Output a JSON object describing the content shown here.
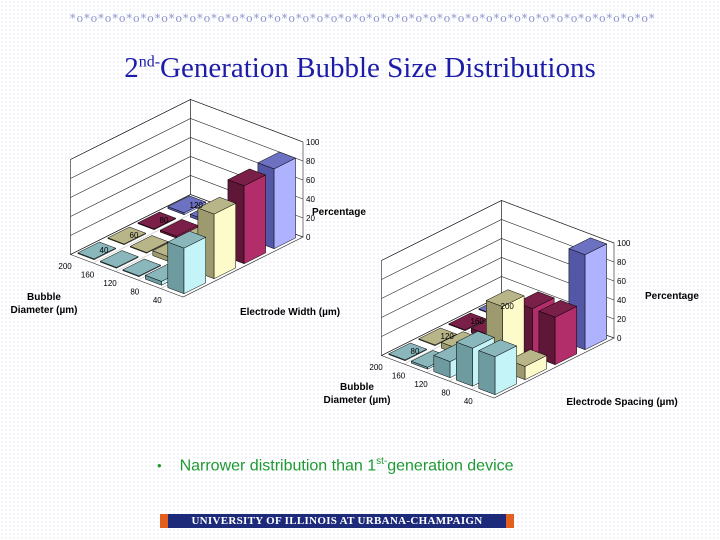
{
  "slide": {
    "ornament": "*o*o*o*o*o*o*o*o*o*o*o*o*o*o*o*o*o*o*o*o*o*o*o*o*o*o*o*o*o*o*o*o*o*o*o*o*o*o*o*o*o*o*o*o",
    "title_prefix": "2",
    "title_sup": "nd-",
    "title_rest": "Generation Bubble Size Distributions",
    "bullet_dot": "•",
    "bullet_text_a": "Narrower distribution than 1",
    "bullet_sup": "st-",
    "bullet_text_b": "generation device",
    "footer": "UNIVERSITY OF ILLINOIS AT URBANA-CHAMPAIGN",
    "colors": {
      "title": "#1c1ca8",
      "bullet": "#1e9a32",
      "footer_bg": "#1d2a7a",
      "footer_cap": "#e35f1e"
    }
  },
  "chart_data": [
    {
      "type": "bar3d",
      "title": "",
      "zlabel": "Percentage",
      "xlabel_lines": [
        "Bubble",
        "Diameter (µm)"
      ],
      "ylabel": "Electrode Width (µm)",
      "categories": [
        "40",
        "80",
        "120",
        "160",
        "200"
      ],
      "series": [
        {
          "name": "40",
          "values": [
            48,
            4,
            0,
            0,
            0
          ],
          "colors": [
            "#c4f3f8",
            "#8ab7bc",
            "#6e9ba0"
          ]
        },
        {
          "name": "60",
          "values": [
            68,
            27,
            5,
            0,
            0
          ],
          "colors": [
            "#fdfbc9",
            "#b8b688",
            "#9c9a6e"
          ]
        },
        {
          "name": "80",
          "values": [
            82,
            12,
            4,
            2,
            0
          ],
          "colors": [
            "#b22e6a",
            "#7a1f48",
            "#5f1738"
          ]
        },
        {
          "name": "120",
          "values": [
            84,
            10,
            7,
            3,
            2
          ],
          "colors": [
            "#aeb2ff",
            "#6d71c2",
            "#5357a6"
          ]
        }
      ],
      "zticks": [
        "0",
        "20",
        "40",
        "60",
        "80",
        "100"
      ],
      "zlim": [
        0,
        100
      ]
    },
    {
      "type": "bar3d",
      "title": "",
      "zlabel": "Percentage",
      "xlabel_lines": [
        "Bubble",
        "Diameter (µm)"
      ],
      "ylabel": "Electrode Spacing (µm)",
      "categories": [
        "40",
        "80",
        "120",
        "160",
        "200"
      ],
      "series": [
        {
          "name": "80",
          "values": [
            40,
            40,
            17,
            2,
            0
          ],
          "colors": [
            "#c4f3f8",
            "#8ab7bc",
            "#6e9ba0"
          ]
        },
        {
          "name": "120",
          "values": [
            14,
            68,
            13,
            6,
            0
          ],
          "colors": [
            "#fdfbc9",
            "#b8b688",
            "#9c9a6e"
          ]
        },
        {
          "name": "160",
          "values": [
            50,
            50,
            24,
            5,
            0
          ],
          "colors": [
            "#b22e6a",
            "#7a1f48",
            "#5f1738"
          ]
        },
        {
          "name": "200",
          "values": [
            100,
            4,
            2,
            0,
            0
          ],
          "colors": [
            "#aeb2ff",
            "#6d71c2",
            "#5357a6"
          ]
        }
      ],
      "zticks": [
        "0",
        "20",
        "40",
        "60",
        "80",
        "100"
      ],
      "zlim": [
        0,
        100
      ]
    }
  ]
}
